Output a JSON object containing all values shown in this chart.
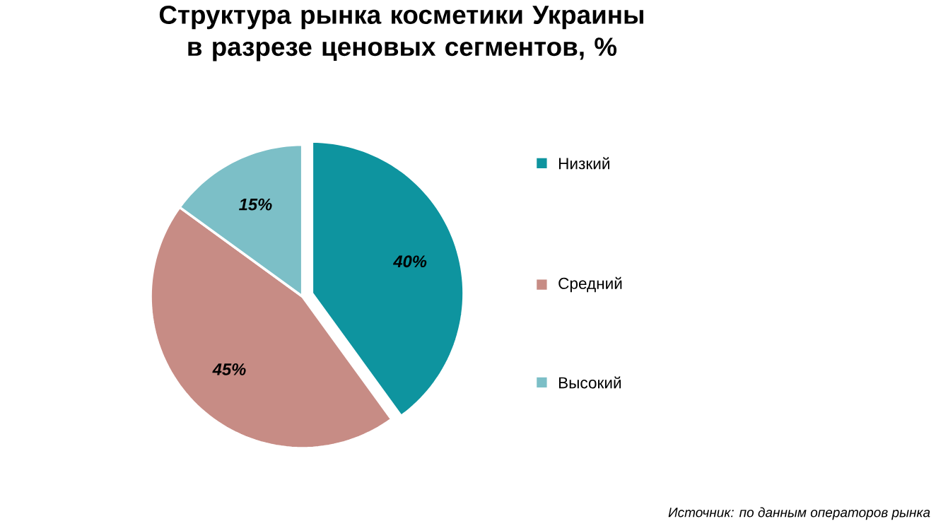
{
  "chart_data": {
    "type": "pie",
    "title": "Структура  рынка косметики Украины в разрезе ценовых сегментов, %",
    "categories": [
      "Низкий",
      "Средний",
      "Высокий"
    ],
    "values": [
      40,
      45,
      15
    ],
    "value_labels": [
      "40%",
      "45%",
      "15%"
    ],
    "colors": [
      "#0e949f",
      "#c78c85",
      "#7cbfc7"
    ],
    "legend": "right",
    "annotations": [
      "Источник: по данным операторов рынка"
    ]
  }
}
